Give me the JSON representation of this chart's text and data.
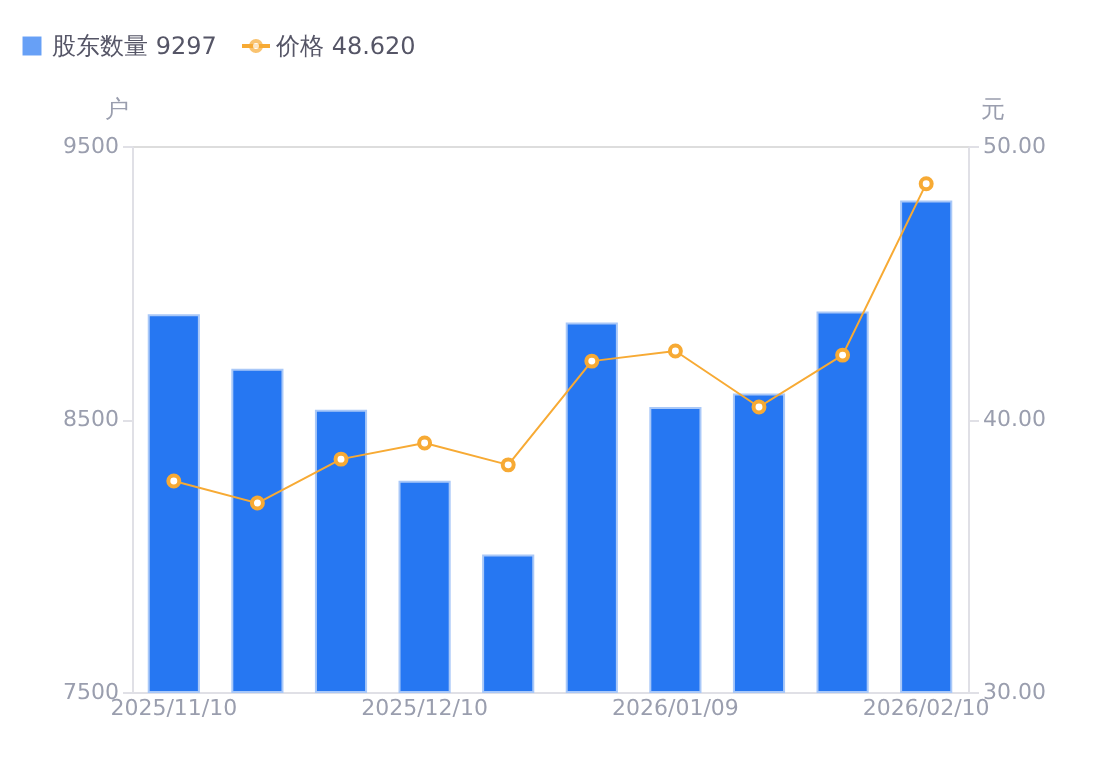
{
  "chart_data": {
    "type": "bar",
    "categories": [
      "2025/11/10",
      null,
      null,
      "2025/12/10",
      null,
      null,
      "2026/01/09",
      null,
      null,
      "2026/02/10"
    ],
    "series": [
      {
        "name": "股东数量 9297",
        "color": "#2677f2",
        "values": [
          8880,
          8680,
          8530,
          8270,
          8000,
          8850,
          8540,
          8590,
          8890,
          9297
        ]
      },
      {
        "name": "价格 48.620",
        "type": "line",
        "axis": "y2",
        "color": "#f7aa34",
        "marker": "circle",
        "values": [
          37.73,
          36.92,
          38.53,
          39.12,
          38.32,
          42.12,
          42.49,
          40.44,
          42.34,
          48.62
        ]
      }
    ],
    "ylabel": "户",
    "y2label": "元",
    "ylim": [
      7500,
      9500
    ],
    "yticks": [
      7500,
      8500,
      9500
    ],
    "y2lim": [
      30,
      50
    ],
    "y2ticks": [
      {
        "value": 30,
        "label": "30.00"
      },
      {
        "value": 40,
        "label": "40.00"
      },
      {
        "value": 50,
        "label": "50.00"
      }
    ],
    "grid": false,
    "legend": "top left",
    "line_style": "solid"
  }
}
